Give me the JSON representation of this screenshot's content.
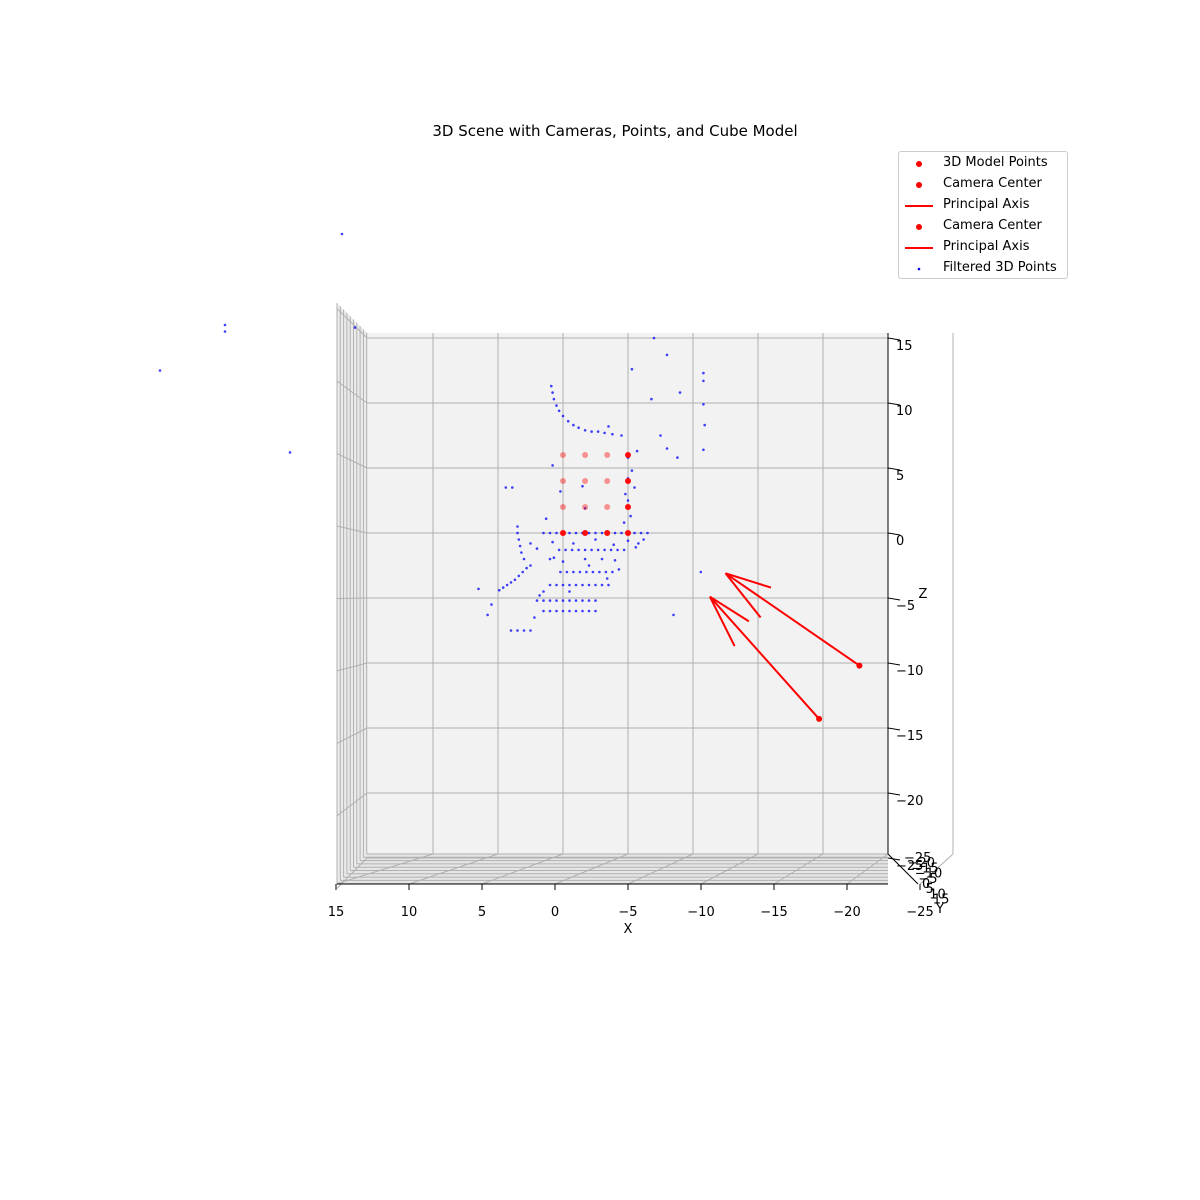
{
  "chart_data": {
    "type": "scatter",
    "subtype": "3d-scatter",
    "title": "3D Scene with Cameras, Points, and Cube Model",
    "xlabel": "X",
    "ylabel": "Y",
    "zlabel": "Z",
    "xlim": [
      15,
      -25
    ],
    "zlim": [
      -25,
      15
    ],
    "x_ticks": [
      "15",
      "10",
      "5",
      "0",
      "−5",
      "−10",
      "−15",
      "−20",
      "−25"
    ],
    "z_ticks": [
      "15",
      "10",
      "5",
      "0",
      "−5",
      "−10",
      "−15",
      "−20",
      "−25"
    ],
    "y_ticks": [
      "−25",
      "−20",
      "−15",
      "−10",
      "−5",
      "0",
      "5",
      "10",
      "15"
    ],
    "grid": true,
    "legend_position": "top-right",
    "colors": {
      "model": "#ff0000",
      "camera": "#ff0000",
      "axis": "#ff0000",
      "points": "#0000ff"
    },
    "legend": [
      {
        "label": "3D Model Points",
        "kind": "dot",
        "color": "#ff0000"
      },
      {
        "label": "Camera Center",
        "kind": "dot",
        "color": "#ff0000"
      },
      {
        "label": "Principal Axis",
        "kind": "line",
        "color": "#ff0000"
      },
      {
        "label": "Camera Center",
        "kind": "dot",
        "color": "#ff0000"
      },
      {
        "label": "Principal Axis",
        "kind": "line",
        "color": "#ff0000"
      },
      {
        "label": "Filtered 3D Points",
        "kind": "small-dot",
        "color": "#0000ff"
      }
    ],
    "model_points": [
      {
        "x": 5,
        "z": 0
      },
      {
        "x": 3.3,
        "z": 0
      },
      {
        "x": 1.6,
        "z": 0
      },
      {
        "x": 0,
        "z": 0
      },
      {
        "x": 5,
        "z": 2
      },
      {
        "x": 3.3,
        "z": 2
      },
      {
        "x": 1.6,
        "z": 2
      },
      {
        "x": 0,
        "z": 2
      },
      {
        "x": 5,
        "z": 4
      },
      {
        "x": 3.3,
        "z": 4
      },
      {
        "x": 1.6,
        "z": 4
      },
      {
        "x": 0,
        "z": 4
      },
      {
        "x": 5,
        "z": 6
      },
      {
        "x": 3.3,
        "z": 6
      },
      {
        "x": 1.6,
        "z": 6
      },
      {
        "x": 0,
        "z": 6
      }
    ],
    "cameras": [
      {
        "center": {
          "x": -17.8,
          "z": -10.2
        },
        "axis_tip": {
          "x": -7.5,
          "z": -3.1
        },
        "arrow_heads": [
          {
            "x": -11,
            "z": -4.2
          },
          {
            "x": -10.2,
            "z": -6.5
          }
        ]
      },
      {
        "center": {
          "x": -14.7,
          "z": -14.3
        },
        "axis_tip": {
          "x": -6.3,
          "z": -4.9
        },
        "arrow_heads": [
          {
            "x": -9.3,
            "z": -6.8
          },
          {
            "x": -8.2,
            "z": -8.7
          }
        ]
      }
    ],
    "filtered_points": [
      {
        "x": 7.5,
        "z": -2.5
      },
      {
        "x": 7.8,
        "z": -2.7
      },
      {
        "x": 8.1,
        "z": -3
      },
      {
        "x": 8.4,
        "z": -3.3
      },
      {
        "x": 8.7,
        "z": -3.6
      },
      {
        "x": 9,
        "z": -3.8
      },
      {
        "x": 9.3,
        "z": -4
      },
      {
        "x": 9.6,
        "z": -4.2
      },
      {
        "x": 9.9,
        "z": -4.4
      },
      {
        "x": 8.2,
        "z": -1.5
      },
      {
        "x": 8.3,
        "z": -1
      },
      {
        "x": 8.4,
        "z": -0.5
      },
      {
        "x": 8.5,
        "z": 0
      },
      {
        "x": 8.5,
        "z": 0.5
      },
      {
        "x": 8.0,
        "z": -2
      },
      {
        "x": 6.5,
        "z": 0
      },
      {
        "x": 6,
        "z": 0
      },
      {
        "x": 5.5,
        "z": 0
      },
      {
        "x": 4.5,
        "z": 0
      },
      {
        "x": 4,
        "z": 0
      },
      {
        "x": 3.5,
        "z": 0
      },
      {
        "x": 3,
        "z": 0
      },
      {
        "x": 2.5,
        "z": 0
      },
      {
        "x": 2,
        "z": 0
      },
      {
        "x": 1,
        "z": 0
      },
      {
        "x": 0.5,
        "z": 0
      },
      {
        "x": -0.5,
        "z": 0
      },
      {
        "x": -1,
        "z": 0
      },
      {
        "x": -1.5,
        "z": 0
      },
      {
        "x": -1.2,
        "z": -0.5
      },
      {
        "x": -0.8,
        "z": -0.8
      },
      {
        "x": 5.3,
        "z": -1.3
      },
      {
        "x": 4.8,
        "z": -1.3
      },
      {
        "x": 4.3,
        "z": -1.3
      },
      {
        "x": 3.8,
        "z": -1.3
      },
      {
        "x": 3.3,
        "z": -1.3
      },
      {
        "x": 2.8,
        "z": -1.3
      },
      {
        "x": 2.3,
        "z": -1.3
      },
      {
        "x": 1.8,
        "z": -1.3
      },
      {
        "x": 1.3,
        "z": -1.3
      },
      {
        "x": 0.8,
        "z": -1.3
      },
      {
        "x": 0.3,
        "z": -1.3
      },
      {
        "x": 5.2,
        "z": -3
      },
      {
        "x": 4.7,
        "z": -3
      },
      {
        "x": 4.2,
        "z": -3
      },
      {
        "x": 3.7,
        "z": -3
      },
      {
        "x": 3.2,
        "z": -3
      },
      {
        "x": 2.7,
        "z": -3
      },
      {
        "x": 2.2,
        "z": -3
      },
      {
        "x": 1.7,
        "z": -3
      },
      {
        "x": 1.2,
        "z": -3
      },
      {
        "x": 0.7,
        "z": -2.8
      },
      {
        "x": 6,
        "z": -4
      },
      {
        "x": 5.5,
        "z": -4
      },
      {
        "x": 5,
        "z": -4
      },
      {
        "x": 4.5,
        "z": -4
      },
      {
        "x": 4,
        "z": -4
      },
      {
        "x": 3.5,
        "z": -4
      },
      {
        "x": 3,
        "z": -4
      },
      {
        "x": 2.5,
        "z": -4
      },
      {
        "x": 2,
        "z": -4
      },
      {
        "x": 1.5,
        "z": -4
      },
      {
        "x": 7,
        "z": -5.2
      },
      {
        "x": 6.5,
        "z": -5.2
      },
      {
        "x": 6,
        "z": -5.2
      },
      {
        "x": 5.5,
        "z": -5.2
      },
      {
        "x": 5,
        "z": -5.2
      },
      {
        "x": 4.5,
        "z": -5.2
      },
      {
        "x": 4,
        "z": -5.2
      },
      {
        "x": 3.5,
        "z": -5.2
      },
      {
        "x": 3,
        "z": -5.2
      },
      {
        "x": 2.5,
        "z": -5.2
      },
      {
        "x": 6.5,
        "z": -6
      },
      {
        "x": 6,
        "z": -6
      },
      {
        "x": 5.5,
        "z": -6
      },
      {
        "x": 5,
        "z": -6
      },
      {
        "x": 4.5,
        "z": -6
      },
      {
        "x": 4,
        "z": -6
      },
      {
        "x": 3.5,
        "z": -6
      },
      {
        "x": 3,
        "z": -6
      },
      {
        "x": 2.5,
        "z": -6
      },
      {
        "x": 9,
        "z": -7.5
      },
      {
        "x": 8.5,
        "z": -7.5
      },
      {
        "x": 8,
        "z": -7.5
      },
      {
        "x": 7.5,
        "z": -7.5
      },
      {
        "x": 10.5,
        "z": -5.5
      },
      {
        "x": 10.8,
        "z": -6.3
      },
      {
        "x": 11.5,
        "z": -4.3
      },
      {
        "x": 7.2,
        "z": -6.5
      },
      {
        "x": 6.8,
        "z": -4.8
      },
      {
        "x": 6,
        "z": -2
      },
      {
        "x": 5,
        "z": -2.2
      },
      {
        "x": 3,
        "z": -2.5
      },
      {
        "x": 2,
        "z": -2
      },
      {
        "x": 1,
        "z": -2.1
      },
      {
        "x": 0,
        "z": -0.6
      },
      {
        "x": 7.5,
        "z": -0.8
      },
      {
        "x": 9.4,
        "z": 3.5
      },
      {
        "x": 8.9,
        "z": 3.5
      },
      {
        "x": 5.8,
        "z": 5.2
      },
      {
        "x": 5.2,
        "z": 3.2
      },
      {
        "x": 3.3,
        "z": 1.9
      },
      {
        "x": 3.5,
        "z": 3.6
      },
      {
        "x": 0,
        "z": 2.5
      },
      {
        "x": 0,
        "z": 4.2
      },
      {
        "x": 0,
        "z": 5.8
      },
      {
        "x": -0.2,
        "z": 1.3
      },
      {
        "x": 0.3,
        "z": 0.8
      },
      {
        "x": -0.5,
        "z": 3.5
      },
      {
        "x": 0.2,
        "z": 3
      },
      {
        "x": -0.3,
        "z": 4.8
      },
      {
        "x": 0.5,
        "z": 7.5
      },
      {
        "x": 1.2,
        "z": 7.6
      },
      {
        "x": 1.8,
        "z": 7.7
      },
      {
        "x": 2.3,
        "z": 7.8
      },
      {
        "x": 2.8,
        "z": 7.8
      },
      {
        "x": 3.3,
        "z": 7.9
      },
      {
        "x": 3.8,
        "z": 8.1
      },
      {
        "x": 4.2,
        "z": 8.3
      },
      {
        "x": 4.6,
        "z": 8.6
      },
      {
        "x": 5.0,
        "z": 9
      },
      {
        "x": 5.3,
        "z": 9.4
      },
      {
        "x": 5.5,
        "z": 9.8
      },
      {
        "x": 5.7,
        "z": 10.3
      },
      {
        "x": 5.8,
        "z": 10.8
      },
      {
        "x": 5.9,
        "z": 11.3
      },
      {
        "x": 1.5,
        "z": 8.2
      },
      {
        "x": -0.7,
        "z": 6.3
      },
      {
        "x": -0.3,
        "z": 12.6
      },
      {
        "x": -3,
        "z": 13.7
      },
      {
        "x": -2,
        "z": 15
      },
      {
        "x": -4,
        "z": 10.8
      },
      {
        "x": -1.8,
        "z": 10.3
      },
      {
        "x": -5.8,
        "z": 12.3
      },
      {
        "x": -5.8,
        "z": 11.7
      },
      {
        "x": -5.8,
        "z": 9.9
      },
      {
        "x": -5.9,
        "z": 8.3
      },
      {
        "x": -5.8,
        "z": 6.4
      },
      {
        "x": -5.6,
        "z": -3.0
      },
      {
        "x": -3.5,
        "z": -6.3
      },
      {
        "x": -2.5,
        "z": 7.5
      },
      {
        "x": -3,
        "z": 6.5
      },
      {
        "x": -3.8,
        "z": 5.8
      },
      {
        "x": 6.5,
        "z": -4.5
      },
      {
        "x": 4.5,
        "z": -4.5
      },
      {
        "x": 3.3,
        "z": -2
      },
      {
        "x": 1.6,
        "z": -3.5
      },
      {
        "x": 2.5,
        "z": -0.5
      },
      {
        "x": 4.2,
        "z": -0.8
      },
      {
        "x": 5.8,
        "z": -0.7
      },
      {
        "x": 7,
        "z": -1.2
      },
      {
        "x": -0.6,
        "z": -1.1
      },
      {
        "x": 1.1,
        "z": -0.9
      },
      {
        "x": 6.3,
        "z": 1.1
      },
      {
        "x": 5.7,
        "z": -1.9
      }
    ],
    "outlier_points": [
      {
        "x": 22,
        "z": 23.0
      },
      {
        "x": 31,
        "z": 16.0
      },
      {
        "x": 31,
        "z": 15.5
      },
      {
        "x": 36,
        "z": 12.5
      },
      {
        "x": 21,
        "z": 15.8
      },
      {
        "x": 26,
        "z": 6.2
      }
    ]
  }
}
